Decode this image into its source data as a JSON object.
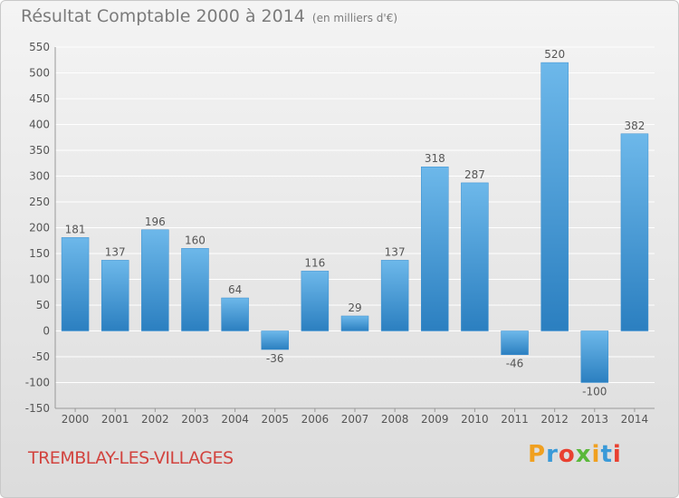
{
  "header": {
    "title": "Résultat Comptable 2000 à 2014",
    "subtitle": "(en milliers d'€)"
  },
  "footer": {
    "city": "TREMBLAY-LES-VILLAGES",
    "logo": "Proxiti"
  },
  "colors": {
    "bar_light": "#6db8ea",
    "bar_dark": "#2b7fc0",
    "grid": "#ffffff",
    "text": "#555555",
    "city": "#d2433e"
  },
  "chart_data": {
    "type": "bar",
    "title": "Résultat Comptable 2000 à 2014",
    "subtitle": "(en milliers d'€)",
    "categories": [
      "2000",
      "2001",
      "2002",
      "2003",
      "2004",
      "2005",
      "2006",
      "2007",
      "2008",
      "2009",
      "2010",
      "2011",
      "2012",
      "2013",
      "2014"
    ],
    "values": [
      181,
      137,
      196,
      160,
      64,
      -36,
      116,
      29,
      137,
      318,
      287,
      -46,
      520,
      -100,
      382
    ],
    "ylim": [
      -150,
      550
    ],
    "yticks": [
      -150,
      -100,
      -50,
      0,
      50,
      100,
      150,
      200,
      250,
      300,
      350,
      400,
      450,
      500,
      550
    ],
    "grid": true,
    "xlabel": "",
    "ylabel": ""
  }
}
